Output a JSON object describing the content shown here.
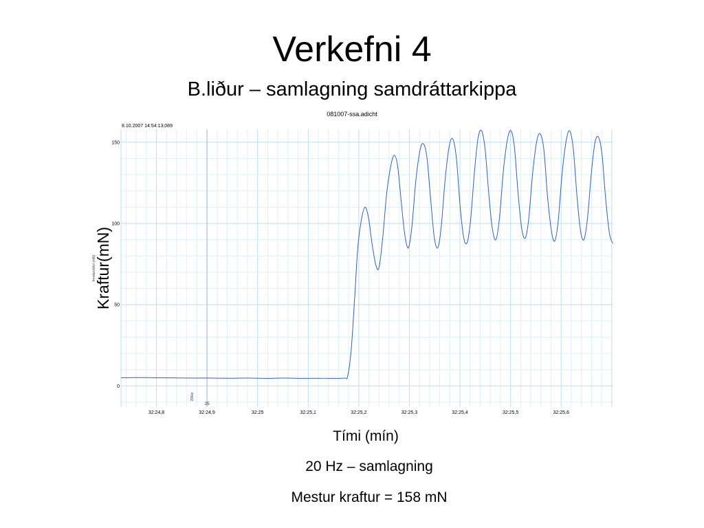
{
  "slide": {
    "title": "Verkefni 4",
    "subtitle": "B.liður – samlagning samdráttarkippa",
    "ylabel": "Kraftur(mN)",
    "xlabel": "Tími (mín)",
    "note_1": "20 Hz – samlagning",
    "note_2": "Mestur kraftur = 158 mN"
  },
  "chart_data": {
    "type": "line",
    "title": "081007-ssa.adicht",
    "timestamp": "8.10.2007 14:54:13,089",
    "ylabel": "Þindarvöðvi (mN)",
    "xlabel": "",
    "ylim": [
      -13,
      158
    ],
    "xlim": [
      24.73,
      25.703
    ],
    "yticks": [
      {
        "value": 0,
        "label": "0"
      },
      {
        "value": 50,
        "label": "50"
      },
      {
        "value": 100,
        "label": "100"
      },
      {
        "value": 150,
        "label": "150"
      }
    ],
    "xticks": [
      {
        "value": 24.8,
        "label": "32:24,8"
      },
      {
        "value": 24.9,
        "label": "32:24,9"
      },
      {
        "value": 25.0,
        "label": "32:25"
      },
      {
        "value": 25.1,
        "label": "32:25,1"
      },
      {
        "value": 25.2,
        "label": "32:25,2"
      },
      {
        "value": 25.3,
        "label": "32:25,3"
      },
      {
        "value": 25.4,
        "label": "32:25,4"
      },
      {
        "value": 25.5,
        "label": "32:25,5"
      },
      {
        "value": 25.6,
        "label": "32:25,6"
      }
    ],
    "grid": true,
    "marker": {
      "x": 24.9,
      "rotated_label": "20Hz",
      "label": "25"
    },
    "series": [
      {
        "color": "#2c5fc4",
        "points": [
          [
            24.73,
            5.0
          ],
          [
            24.78,
            5.1
          ],
          [
            24.8,
            5.0
          ],
          [
            24.84,
            4.9
          ],
          [
            24.87,
            4.8
          ],
          [
            24.9,
            4.8
          ],
          [
            24.95,
            4.7
          ],
          [
            24.98,
            4.8
          ],
          [
            25.02,
            4.6
          ],
          [
            25.05,
            4.8
          ],
          [
            25.09,
            4.6
          ],
          [
            25.12,
            4.7
          ],
          [
            25.15,
            4.6
          ],
          [
            25.172,
            4.8
          ],
          [
            25.178,
            6
          ],
          [
            25.185,
            22
          ],
          [
            25.192,
            55
          ],
          [
            25.198,
            85
          ],
          [
            25.205,
            102
          ],
          [
            25.212,
            110
          ],
          [
            25.219,
            104
          ],
          [
            25.226,
            88
          ],
          [
            25.234,
            74
          ],
          [
            25.24,
            73
          ],
          [
            25.247,
            90
          ],
          [
            25.255,
            118
          ],
          [
            25.263,
            135
          ],
          [
            25.27,
            142
          ],
          [
            25.277,
            135
          ],
          [
            25.284,
            113
          ],
          [
            25.291,
            93
          ],
          [
            25.298,
            85
          ],
          [
            25.305,
            98
          ],
          [
            25.313,
            127
          ],
          [
            25.321,
            145
          ],
          [
            25.328,
            149
          ],
          [
            25.335,
            140
          ],
          [
            25.342,
            115
          ],
          [
            25.349,
            92
          ],
          [
            25.356,
            85
          ],
          [
            25.363,
            98
          ],
          [
            25.371,
            128
          ],
          [
            25.379,
            148
          ],
          [
            25.386,
            152
          ],
          [
            25.393,
            140
          ],
          [
            25.4,
            112
          ],
          [
            25.407,
            92
          ],
          [
            25.414,
            88
          ],
          [
            25.421,
            102
          ],
          [
            25.429,
            133
          ],
          [
            25.436,
            153
          ],
          [
            25.443,
            157
          ],
          [
            25.45,
            145
          ],
          [
            25.457,
            118
          ],
          [
            25.464,
            97
          ],
          [
            25.471,
            90
          ],
          [
            25.478,
            103
          ],
          [
            25.486,
            133
          ],
          [
            25.494,
            152
          ],
          [
            25.501,
            157
          ],
          [
            25.508,
            146
          ],
          [
            25.515,
            118
          ],
          [
            25.522,
            97
          ],
          [
            25.529,
            91
          ],
          [
            25.536,
            103
          ],
          [
            25.544,
            132
          ],
          [
            25.552,
            151
          ],
          [
            25.559,
            155
          ],
          [
            25.566,
            145
          ],
          [
            25.573,
            117
          ],
          [
            25.58,
            97
          ],
          [
            25.587,
            89
          ],
          [
            25.594,
            101
          ],
          [
            25.602,
            131
          ],
          [
            25.61,
            151
          ],
          [
            25.617,
            157
          ],
          [
            25.624,
            146
          ],
          [
            25.631,
            118
          ],
          [
            25.638,
            96
          ],
          [
            25.645,
            90
          ],
          [
            25.652,
            103
          ],
          [
            25.66,
            132
          ],
          [
            25.667,
            150
          ],
          [
            25.674,
            153
          ],
          [
            25.681,
            142
          ],
          [
            25.688,
            115
          ],
          [
            25.695,
            95
          ],
          [
            25.7,
            89
          ],
          [
            25.703,
            88
          ]
        ]
      }
    ]
  }
}
